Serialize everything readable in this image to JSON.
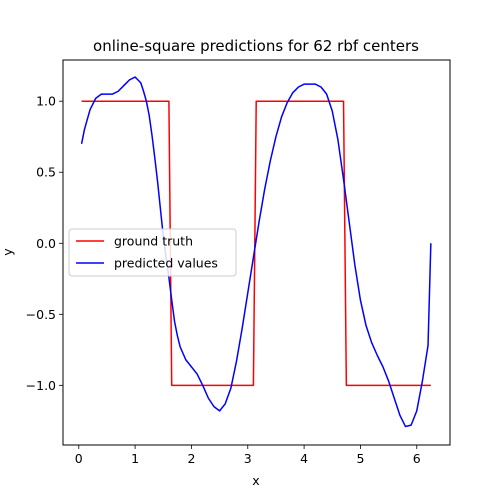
{
  "chart_data": {
    "type": "line",
    "title": "online-square predictions for 62 rbf centers",
    "xlabel": "x",
    "ylabel": "y",
    "xlim": [
      -0.28,
      6.59
    ],
    "ylim": [
      -1.42,
      1.29
    ],
    "xticks": [
      0,
      1,
      2,
      3,
      4,
      5,
      6
    ],
    "xtick_labels": [
      "0",
      "1",
      "2",
      "3",
      "4",
      "5",
      "6"
    ],
    "yticks": [
      -1.0,
      -0.5,
      0.0,
      0.5,
      1.0
    ],
    "ytick_labels": [
      "−1.0",
      "−0.5",
      "0.0",
      "0.5",
      "1.0"
    ],
    "grid": false,
    "legend_position": "center-left",
    "series": [
      {
        "name": "ground truth",
        "color": "#ff0000",
        "x": [
          0.05,
          1.55,
          1.6,
          1.65,
          3.05,
          3.1,
          3.15,
          4.65,
          4.7,
          4.75,
          6.25
        ],
        "y": [
          1,
          1,
          1,
          -1,
          -1,
          -1,
          1,
          1,
          1,
          -1,
          -1
        ]
      },
      {
        "name": "predicted values",
        "color": "#0000ff",
        "x": [
          0.05,
          0.1,
          0.2,
          0.3,
          0.4,
          0.5,
          0.6,
          0.7,
          0.8,
          0.9,
          1.0,
          1.05,
          1.1,
          1.15,
          1.2,
          1.25,
          1.3,
          1.35,
          1.4,
          1.45,
          1.5,
          1.55,
          1.6,
          1.65,
          1.7,
          1.75,
          1.8,
          1.9,
          2.0,
          2.1,
          2.2,
          2.3,
          2.4,
          2.5,
          2.6,
          2.7,
          2.8,
          2.9,
          3.0,
          3.1,
          3.2,
          3.3,
          3.4,
          3.5,
          3.6,
          3.7,
          3.8,
          3.9,
          4.0,
          4.1,
          4.2,
          4.3,
          4.4,
          4.5,
          4.6,
          4.7,
          4.8,
          4.9,
          5.0,
          5.1,
          5.2,
          5.3,
          5.4,
          5.5,
          5.6,
          5.7,
          5.8,
          5.9,
          6.0,
          6.1,
          6.2,
          6.25
        ],
        "y": [
          0.7,
          0.8,
          0.94,
          1.02,
          1.05,
          1.05,
          1.05,
          1.07,
          1.11,
          1.15,
          1.17,
          1.15,
          1.13,
          1.07,
          1.0,
          0.9,
          0.76,
          0.6,
          0.43,
          0.24,
          0.05,
          -0.1,
          -0.24,
          -0.4,
          -0.55,
          -0.65,
          -0.73,
          -0.82,
          -0.87,
          -0.92,
          -1.0,
          -1.09,
          -1.15,
          -1.18,
          -1.13,
          -1.02,
          -0.83,
          -0.6,
          -0.35,
          -0.1,
          0.15,
          0.38,
          0.58,
          0.75,
          0.89,
          0.99,
          1.06,
          1.1,
          1.12,
          1.12,
          1.12,
          1.1,
          1.05,
          0.93,
          0.73,
          0.45,
          0.15,
          -0.15,
          -0.4,
          -0.58,
          -0.7,
          -0.79,
          -0.87,
          -0.97,
          -1.09,
          -1.21,
          -1.29,
          -1.28,
          -1.18,
          -0.97,
          -0.72,
          -0.0
        ]
      }
    ]
  }
}
